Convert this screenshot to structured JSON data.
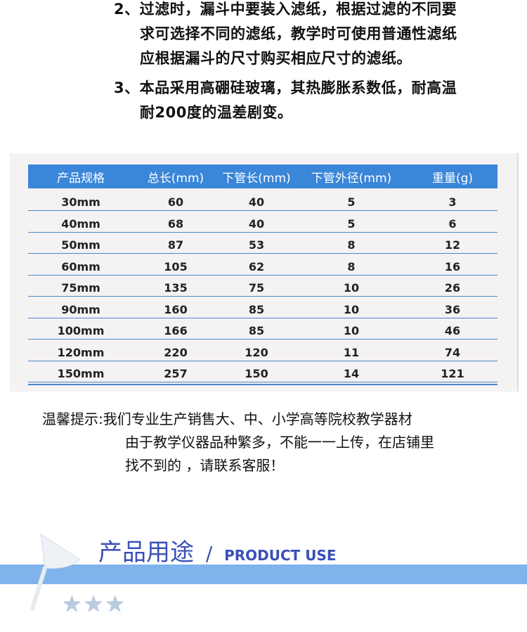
{
  "notes": [
    {
      "num": "2、",
      "lines": [
        "过滤时，漏斗中要装入滤纸，根据过滤的不同要",
        "求可选择不同的滤纸，教学时可使用普通性滤纸",
        "应根据漏斗的尺寸购买相应尺寸的滤纸。"
      ]
    },
    {
      "num": "3、",
      "lines": [
        "本品采用高硼硅玻璃，其热膨胀系数低，耐高温",
        "耐200度的温差剧变。"
      ]
    }
  ],
  "table": {
    "headers": [
      "产品规格",
      "总长(mm)",
      "下管长(mm)",
      "下管外径(mm)",
      "重量(g)"
    ],
    "rows": [
      [
        "30mm",
        "60",
        "40",
        "5",
        "3"
      ],
      [
        "40mm",
        "68",
        "40",
        "5",
        "6"
      ],
      [
        "50mm",
        "87",
        "53",
        "8",
        "12"
      ],
      [
        "60mm",
        "105",
        "62",
        "8",
        "16"
      ],
      [
        "75mm",
        "135",
        "75",
        "10",
        "26"
      ],
      [
        "90mm",
        "160",
        "85",
        "10",
        "36"
      ],
      [
        "100mm",
        "166",
        "85",
        "10",
        "46"
      ],
      [
        "120mm",
        "220",
        "120",
        "11",
        "74"
      ],
      [
        "150mm",
        "257",
        "150",
        "14",
        "121"
      ]
    ]
  },
  "tip": {
    "label": "温馨提示:",
    "lines": [
      "我们专业生产销售大、中、小学高等院校教学器材",
      "由于教学仪器品种繁多，不能一一上传，在店铺里",
      "找不到的 ，请联系客服！"
    ]
  },
  "section": {
    "title": "产品用途",
    "sep": "/",
    "title_en": "PRODUCT USE",
    "stars": "★★★",
    "colors": {
      "title": "#3a4fb8",
      "bar": "#7fb3ec",
      "header": "#3a86d8"
    }
  }
}
